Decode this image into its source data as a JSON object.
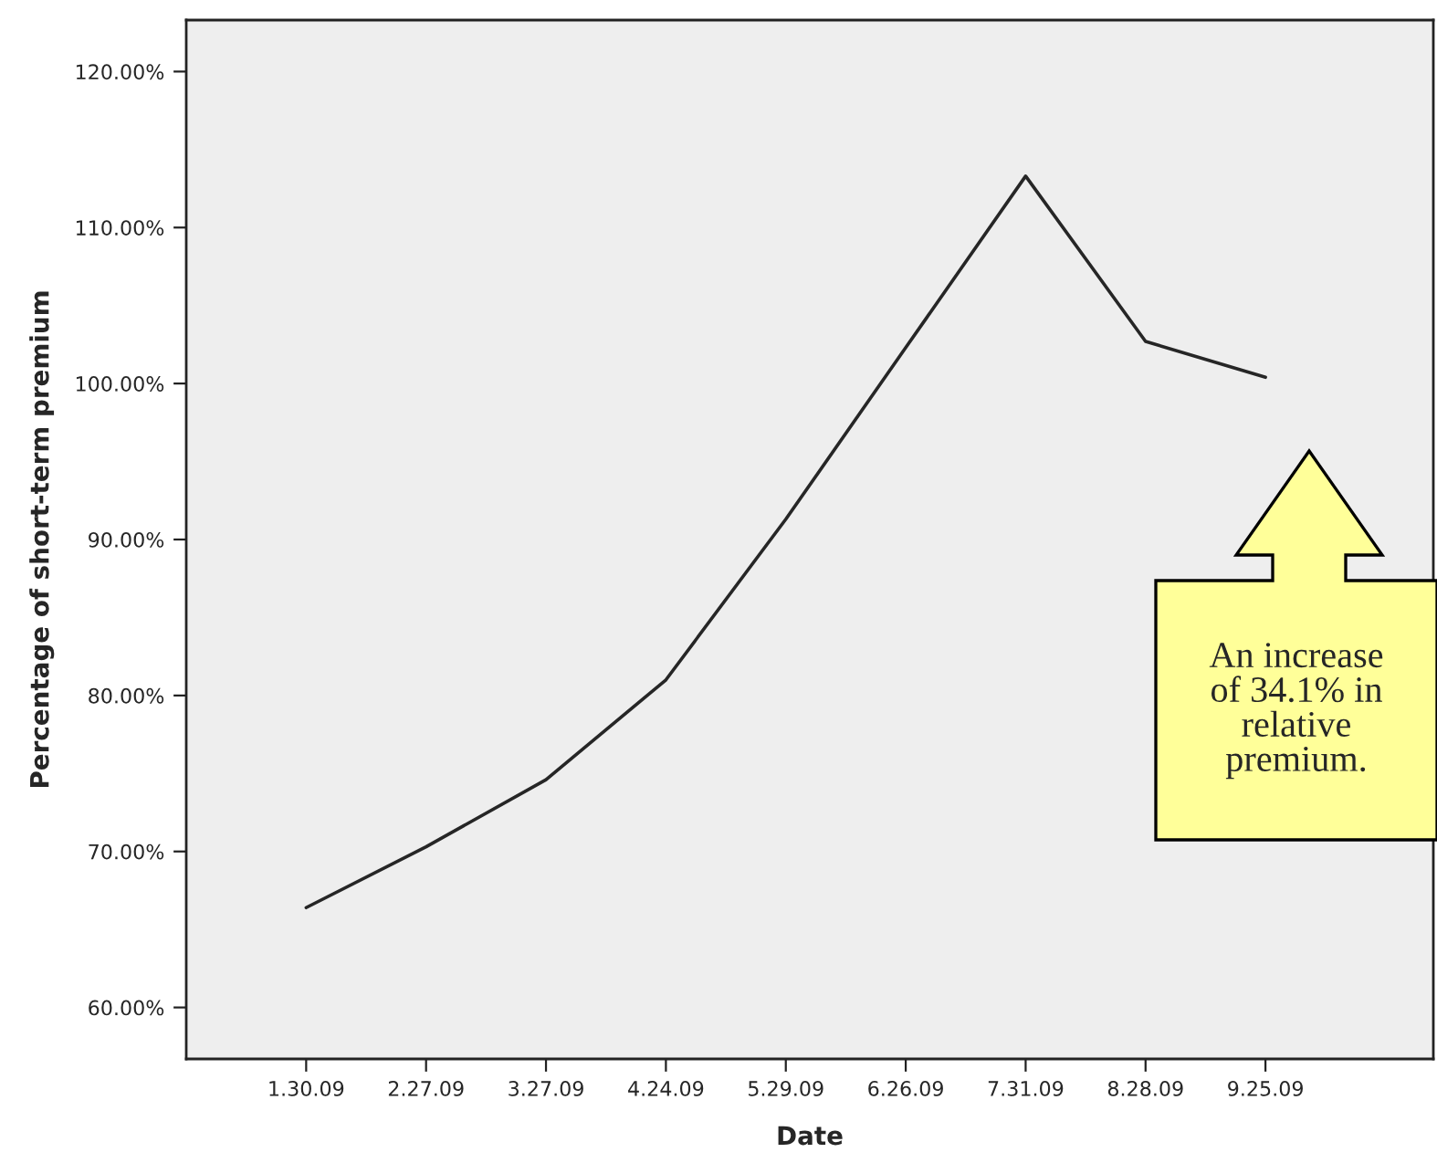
{
  "chart_data": {
    "type": "line",
    "xlabel": "Date",
    "ylabel": "Percentage of short-term premium",
    "categories": [
      "1.30.09",
      "2.27.09",
      "3.27.09",
      "4.24.09",
      "5.29.09",
      "6.26.09",
      "7.31.09",
      "8.28.09",
      "9.25.09"
    ],
    "series": [
      {
        "color": "#262626",
        "values": [
          66.4,
          70.3,
          74.6,
          81.0,
          91.3,
          102.3,
          113.3,
          102.7,
          100.4
        ]
      }
    ],
    "ylim": [
      56.7,
      123.3
    ],
    "yticks": [
      {
        "value": 60,
        "label": "60.00%"
      },
      {
        "value": 70,
        "label": "70.00%"
      },
      {
        "value": 80,
        "label": "80.00%"
      },
      {
        "value": 90,
        "label": "90.00%"
      },
      {
        "value": 100,
        "label": "100.00%"
      },
      {
        "value": 110,
        "label": "110.00%"
      },
      {
        "value": 120,
        "label": "120.00%"
      }
    ],
    "annotations": [
      "An increase\nof 34.1% in\nrelative\npremium."
    ],
    "grid": false,
    "legend": false,
    "marker": "none",
    "line_style": "solid"
  }
}
